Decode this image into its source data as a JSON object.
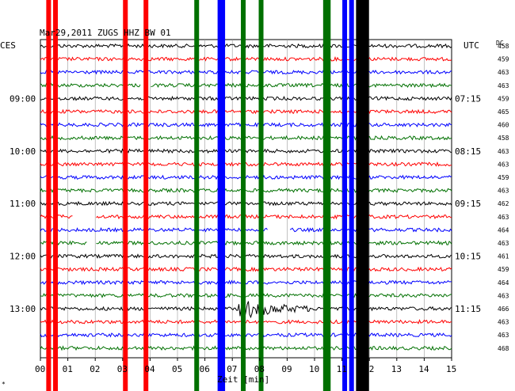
{
  "chart_data": {
    "type": "line",
    "title": "Mar29,2011  ZUGS HHZ BW 01",
    "left_label": "CES",
    "right_label": "UTC",
    "dc_label": "DC",
    "xlabel": "Zeit [min]",
    "x_ticks": [
      "00",
      "01",
      "02",
      "03",
      "04",
      "05",
      "06",
      "07",
      "08",
      "09",
      "10",
      "11",
      "12",
      "13",
      "14",
      "15"
    ],
    "xlim": [
      0,
      15
    ],
    "left_time_labels": [
      {
        "row": 4,
        "text": "09:00"
      },
      {
        "row": 8,
        "text": "10:00"
      },
      {
        "row": 12,
        "text": "11:00"
      },
      {
        "row": 16,
        "text": "12:00"
      },
      {
        "row": 20,
        "text": "13:00"
      }
    ],
    "right_time_labels": [
      {
        "row": 4,
        "text": "07:15"
      },
      {
        "row": 8,
        "text": "08:15"
      },
      {
        "row": 12,
        "text": "09:15"
      },
      {
        "row": 16,
        "text": "10:15"
      },
      {
        "row": 20,
        "text": "11:15"
      }
    ],
    "dc_values": [
      "458",
      "459",
      "463",
      "463",
      "459",
      "465",
      "460",
      "458",
      "463",
      "463",
      "459",
      "463",
      "462",
      "463",
      "464",
      "463",
      "461",
      "459",
      "464",
      "463",
      "466",
      "463",
      "463",
      "468"
    ],
    "row_colors": [
      "#000000",
      "#ff0000",
      "#0000ff",
      "#007000"
    ],
    "gaps": [
      {
        "row": 3,
        "x": [
          3.65,
          4.0
        ]
      },
      {
        "row": 13,
        "x": [
          1.2,
          2.0
        ]
      },
      {
        "row": 14,
        "x": [
          8.3,
          9.1
        ]
      },
      {
        "row": 15,
        "x": [
          1.7,
          2.0
        ]
      }
    ],
    "event": {
      "row": 20,
      "x": [
        7.2,
        9.8
      ]
    },
    "vertical_bands": [
      {
        "x": 0.3,
        "color": "#ff0000"
      },
      {
        "x": 0.55,
        "color": "#ff0000"
      },
      {
        "x": 3.1,
        "color": "#ff0000"
      },
      {
        "x": 3.85,
        "color": "#ff0000"
      },
      {
        "x": 5.7,
        "color": "#007000"
      },
      {
        "x": 6.55,
        "color": "#0000ff"
      },
      {
        "x": 6.65,
        "color": "#0000ff"
      },
      {
        "x": 7.4,
        "color": "#007000"
      },
      {
        "x": 8.05,
        "color": "#007000"
      },
      {
        "x": 10.4,
        "color": "#007000"
      },
      {
        "x": 10.5,
        "color": "#007000"
      },
      {
        "x": 11.1,
        "color": "#0000ff"
      },
      {
        "x": 11.35,
        "color": "#0000ff"
      },
      {
        "x": 11.6,
        "color": "#000000"
      },
      {
        "x": 11.75,
        "color": "#000000"
      },
      {
        "x": 11.9,
        "color": "#000000"
      }
    ]
  }
}
